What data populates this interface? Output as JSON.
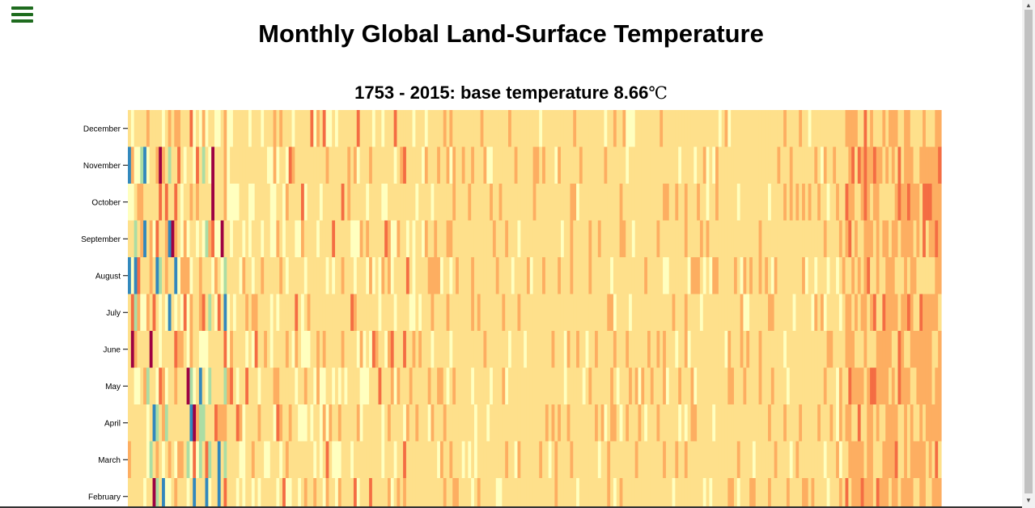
{
  "header": {
    "menu_icon": "hamburger-menu-icon"
  },
  "chart_data": {
    "type": "heatmap",
    "title": "Monthly Global Land-Surface Temperature",
    "subtitle_prefix": "1753 - 2015: base temperature ",
    "base_temperature": "8.66",
    "unit": "℃",
    "x_range": [
      1753,
      2015
    ],
    "y_categories": [
      "December",
      "November",
      "October",
      "September",
      "August",
      "July",
      "June",
      "May",
      "April",
      "March",
      "February"
    ],
    "colors": [
      "#5e4fa2",
      "#3288bd",
      "#66c2a5",
      "#abdda4",
      "#e6f598",
      "#ffffbf",
      "#fee08b",
      "#fdae61",
      "#f46d43",
      "#d53e4f",
      "#9e0142"
    ]
  }
}
